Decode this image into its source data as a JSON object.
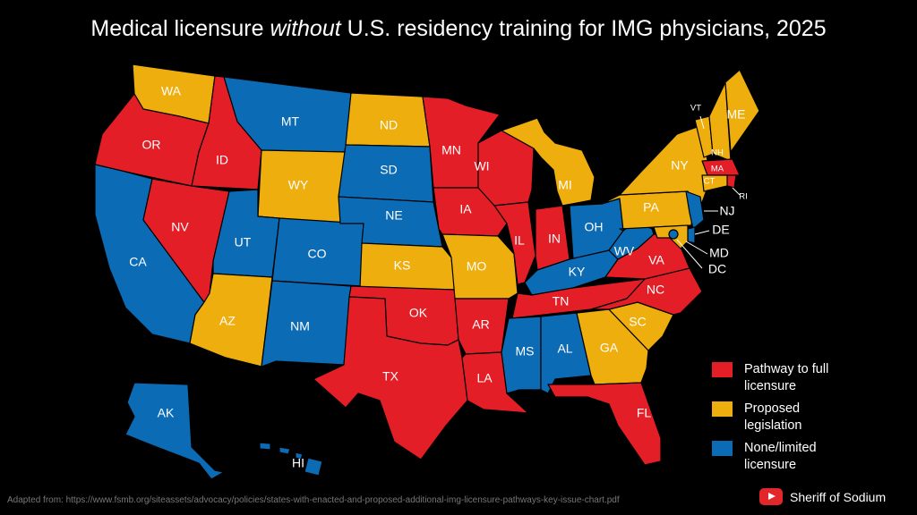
{
  "title": {
    "before": "Medical licensure ",
    "emphasis": "without",
    "after": " U.S. residency training for IMG physicians, 2025"
  },
  "colors": {
    "pathway": "#e41e26",
    "proposed": "#eeae0e",
    "none": "#0b6bb5"
  },
  "legend": [
    {
      "key": "pathway",
      "label": "Pathway to full licensure"
    },
    {
      "key": "proposed",
      "label": "Proposed legislation"
    },
    {
      "key": "none",
      "label": "None/limited licensure"
    }
  ],
  "states": [
    {
      "abbr": "WA",
      "status": "proposed"
    },
    {
      "abbr": "OR",
      "status": "pathway"
    },
    {
      "abbr": "CA",
      "status": "none"
    },
    {
      "abbr": "ID",
      "status": "pathway"
    },
    {
      "abbr": "NV",
      "status": "pathway"
    },
    {
      "abbr": "MT",
      "status": "none"
    },
    {
      "abbr": "WY",
      "status": "proposed"
    },
    {
      "abbr": "UT",
      "status": "none"
    },
    {
      "abbr": "AZ",
      "status": "proposed"
    },
    {
      "abbr": "CO",
      "status": "none"
    },
    {
      "abbr": "NM",
      "status": "none"
    },
    {
      "abbr": "ND",
      "status": "proposed"
    },
    {
      "abbr": "SD",
      "status": "none"
    },
    {
      "abbr": "NE",
      "status": "none"
    },
    {
      "abbr": "KS",
      "status": "proposed"
    },
    {
      "abbr": "OK",
      "status": "pathway"
    },
    {
      "abbr": "TX",
      "status": "pathway"
    },
    {
      "abbr": "MN",
      "status": "pathway"
    },
    {
      "abbr": "IA",
      "status": "pathway"
    },
    {
      "abbr": "MO",
      "status": "proposed"
    },
    {
      "abbr": "AR",
      "status": "pathway"
    },
    {
      "abbr": "LA",
      "status": "pathway"
    },
    {
      "abbr": "WI",
      "status": "pathway"
    },
    {
      "abbr": "IL",
      "status": "pathway"
    },
    {
      "abbr": "MI",
      "status": "proposed"
    },
    {
      "abbr": "IN",
      "status": "pathway"
    },
    {
      "abbr": "OH",
      "status": "none"
    },
    {
      "abbr": "KY",
      "status": "none"
    },
    {
      "abbr": "TN",
      "status": "pathway"
    },
    {
      "abbr": "MS",
      "status": "none"
    },
    {
      "abbr": "AL",
      "status": "none"
    },
    {
      "abbr": "GA",
      "status": "proposed"
    },
    {
      "abbr": "FL",
      "status": "pathway"
    },
    {
      "abbr": "SC",
      "status": "proposed"
    },
    {
      "abbr": "NC",
      "status": "pathway"
    },
    {
      "abbr": "VA",
      "status": "pathway"
    },
    {
      "abbr": "WV",
      "status": "none"
    },
    {
      "abbr": "PA",
      "status": "proposed"
    },
    {
      "abbr": "NY",
      "status": "proposed"
    },
    {
      "abbr": "VT",
      "status": "proposed"
    },
    {
      "abbr": "NH",
      "status": "proposed"
    },
    {
      "abbr": "ME",
      "status": "proposed"
    },
    {
      "abbr": "MA",
      "status": "pathway"
    },
    {
      "abbr": "RI",
      "status": "pathway"
    },
    {
      "abbr": "CT",
      "status": "proposed"
    },
    {
      "abbr": "NJ",
      "status": "none"
    },
    {
      "abbr": "DE",
      "status": "none"
    },
    {
      "abbr": "MD",
      "status": "proposed"
    },
    {
      "abbr": "DC",
      "status": "none"
    },
    {
      "abbr": "AK",
      "status": "none"
    },
    {
      "abbr": "HI",
      "status": "none"
    }
  ],
  "source": "Adapted from: https://www.fsmb.org/siteassets/advocacy/policies/states-with-enacted-and-proposed-additional-img-licensure-pathways-key-issue-chart.pdf",
  "brand": {
    "icon": "youtube-icon",
    "name": "Sheriff of Sodium"
  }
}
